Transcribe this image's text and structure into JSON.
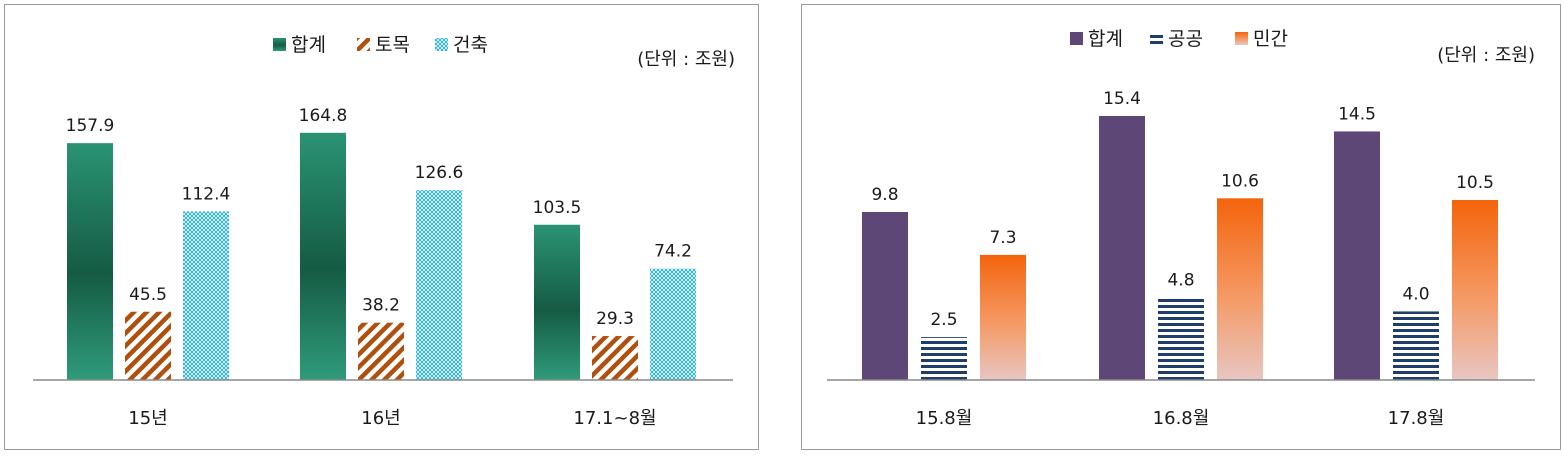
{
  "chart_data": [
    {
      "type": "bar",
      "unit_note": "(단위 : 조원)",
      "categories": [
        "15년",
        "16년",
        "17.1~8월"
      ],
      "ylim": [
        0,
        180
      ],
      "legend_position": "top-center",
      "series": [
        {
          "name": "합계",
          "values": [
            157.9,
            164.8,
            103.5
          ],
          "labels": [
            "157.9",
            "164.8",
            "103.5"
          ],
          "color": "#1f7a5c",
          "pattern": "gradient"
        },
        {
          "name": "토목",
          "values": [
            45.5,
            38.2,
            29.3
          ],
          "labels": [
            "45.5",
            "38.2",
            "29.3"
          ],
          "color": "#b0500e",
          "pattern": "diagonal-stripes"
        },
        {
          "name": "건축",
          "values": [
            112.4,
            126.6,
            74.2
          ],
          "labels": [
            "112.4",
            "126.6",
            "74.2"
          ],
          "color": "#3ab5d6",
          "pattern": "checker"
        }
      ]
    },
    {
      "type": "bar",
      "unit_note": "(단위 : 조원)",
      "categories": [
        "15.8월",
        "16.8월",
        "17.8월"
      ],
      "ylim": [
        0,
        17.5
      ],
      "legend_position": "top-center",
      "series": [
        {
          "name": "합계",
          "values": [
            9.8,
            15.4,
            14.5
          ],
          "labels": [
            "9.8",
            "15.4",
            "14.5"
          ],
          "color": "#5c4776",
          "pattern": "solid"
        },
        {
          "name": "공공",
          "values": [
            2.5,
            4.8,
            4.0
          ],
          "labels": [
            "2.5",
            "4.8",
            "4.0"
          ],
          "color": "#1f3f6a",
          "pattern": "horizontal-stripes"
        },
        {
          "name": "민간",
          "values": [
            7.3,
            10.6,
            10.5
          ],
          "labels": [
            "7.3",
            "10.6",
            "10.5"
          ],
          "color": "#f06a12",
          "pattern": "gradient-orange"
        }
      ]
    }
  ]
}
